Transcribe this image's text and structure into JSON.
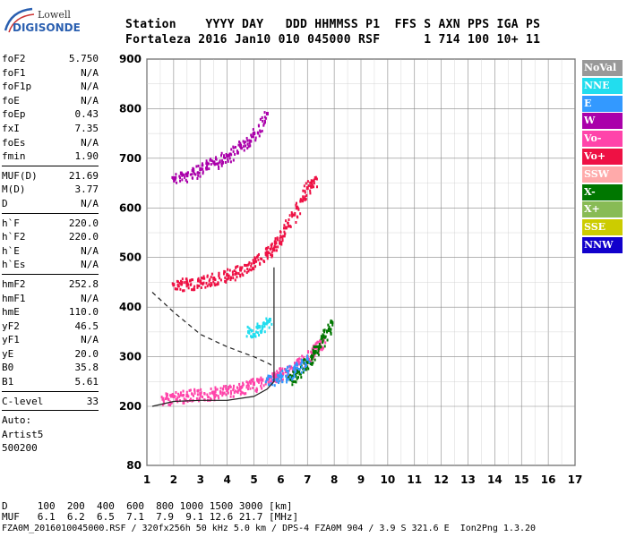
{
  "logo": {
    "top": "Lowell",
    "bottom": "DIGISONDE"
  },
  "header": {
    "line1": "Station    YYYY DAY   DDD HHMMSS P1  FFS S AXN PPS IGA PS",
    "line2": "Fortaleza 2016 Jan10 010 045000 RSF      1 714 100 10+ 11"
  },
  "params": {
    "group1": [
      {
        "label": "foF2",
        "value": "5.750"
      },
      {
        "label": "foF1",
        "value": "N/A"
      },
      {
        "label": "foF1p",
        "value": "N/A"
      },
      {
        "label": "foE",
        "value": "N/A"
      },
      {
        "label": "foEp",
        "value": "0.43"
      },
      {
        "label": "fxI",
        "value": "7.35"
      },
      {
        "label": "foEs",
        "value": "N/A"
      },
      {
        "label": "fmin",
        "value": "1.90"
      }
    ],
    "group2": [
      {
        "label": "MUF(D)",
        "value": "21.69"
      },
      {
        "label": "M(D)",
        "value": "3.77"
      },
      {
        "label": "D",
        "value": "N/A"
      }
    ],
    "group3": [
      {
        "label": "h`F",
        "value": "220.0"
      },
      {
        "label": "h`F2",
        "value": "220.0"
      },
      {
        "label": "h`E",
        "value": "N/A"
      },
      {
        "label": "h`Es",
        "value": "N/A"
      }
    ],
    "group4": [
      {
        "label": "hmF2",
        "value": "252.8"
      },
      {
        "label": "hmF1",
        "value": "N/A"
      },
      {
        "label": "hmE",
        "value": "110.0"
      },
      {
        "label": "yF2",
        "value": "46.5"
      },
      {
        "label": "yF1",
        "value": "N/A"
      },
      {
        "label": "yE",
        "value": "20.0"
      },
      {
        "label": "B0",
        "value": "35.8"
      },
      {
        "label": "B1",
        "value": "5.61"
      }
    ],
    "group5": [
      {
        "label": "C-level",
        "value": "33"
      }
    ],
    "auto": [
      "Auto:",
      "Artist5",
      "500200"
    ]
  },
  "legend": [
    {
      "label": "NoVal",
      "color": "#999999"
    },
    {
      "label": "NNE",
      "color": "#22ddee"
    },
    {
      "label": "E",
      "color": "#3399ff"
    },
    {
      "label": "W",
      "color": "#aa00aa"
    },
    {
      "label": "Vo-",
      "color": "#ff44aa"
    },
    {
      "label": "Vo+",
      "color": "#ee1144"
    },
    {
      "label": "SSW",
      "color": "#ffaaaa"
    },
    {
      "label": "X-",
      "color": "#007700"
    },
    {
      "label": "X+",
      "color": "#88bb55"
    },
    {
      "label": "SSE",
      "color": "#cccc00"
    },
    {
      "label": "NNW",
      "color": "#1100cc"
    }
  ],
  "footer": {
    "line1": "D     100  200  400  600  800 1000 1500 3000 [km]",
    "line2": "MUF   6.1  6.2  6.5  7.1  7.9  9.1 12.6 21.7 [MHz]",
    "line3": "FZA0M_2016010045000.RSF / 320fx256h 50 kHz 5.0 km / DPS-4 FZA0M 904 / 3.9 S 321.6 E  Ion2Png 1.3.20"
  },
  "chart_data": {
    "type": "scatter",
    "xlabel": "",
    "ylabel": "",
    "xlim": [
      1,
      17
    ],
    "ylim": [
      80,
      900
    ],
    "x_ticks": [
      1,
      2,
      3,
      4,
      5,
      6,
      7,
      8,
      9,
      10,
      11,
      12,
      13,
      14,
      15,
      16,
      17
    ],
    "y_ticks": [
      80,
      200,
      300,
      400,
      500,
      600,
      700,
      800,
      900
    ],
    "y_tick_labels": [
      "80",
      "200",
      "300",
      "400",
      "500",
      "600",
      "700",
      "800",
      "900"
    ],
    "grid": true,
    "series": [
      {
        "name": "Vo-",
        "color": "#ff44aa",
        "x": [
          1.6,
          2.0,
          2.5,
          3.0,
          3.5,
          4.0,
          4.5,
          5.0,
          5.5,
          5.8,
          6.2,
          6.6,
          7.0,
          7.3,
          7.6
        ],
        "y": [
          215,
          220,
          222,
          225,
          228,
          232,
          238,
          245,
          255,
          262,
          270,
          285,
          300,
          318,
          335
        ]
      },
      {
        "name": "Vo+",
        "color": "#ee1144",
        "x": [
          2.0,
          2.5,
          3.0,
          3.5,
          4.0,
          4.5,
          5.0,
          5.5,
          5.8,
          6.2,
          6.6,
          7.0,
          7.3
        ],
        "y": [
          445,
          448,
          452,
          458,
          465,
          475,
          490,
          510,
          530,
          560,
          600,
          640,
          660
        ]
      },
      {
        "name": "W",
        "color": "#aa00aa",
        "x": [
          2.0,
          2.5,
          3.0,
          3.5,
          4.0,
          4.5,
          5.0,
          5.5
        ],
        "y": [
          660,
          668,
          678,
          692,
          705,
          725,
          750,
          790
        ]
      },
      {
        "name": "X-",
        "color": "#007700",
        "x": [
          6.3,
          6.6,
          7.0,
          7.3,
          7.6,
          7.9
        ],
        "y": [
          255,
          268,
          290,
          310,
          340,
          370
        ]
      },
      {
        "name": "E",
        "color": "#3399ff",
        "x": [
          5.5,
          6.0,
          6.5,
          7.0
        ],
        "y": [
          255,
          260,
          275,
          295
        ]
      },
      {
        "name": "NNE",
        "color": "#22ddee",
        "x": [
          4.8,
          5.2,
          5.6
        ],
        "y": [
          350,
          360,
          375
        ]
      }
    ],
    "trace_solid": {
      "x": [
        1.2,
        2.0,
        3.0,
        4.0,
        5.0,
        5.5,
        5.75,
        5.75
      ],
      "y": [
        200,
        210,
        212,
        212,
        220,
        235,
        250,
        480
      ]
    },
    "trace_dashed": {
      "x": [
        1.2,
        2.0,
        3.0,
        4.0,
        5.0,
        5.6,
        5.75
      ],
      "y": [
        430,
        390,
        345,
        320,
        300,
        285,
        278
      ]
    }
  }
}
